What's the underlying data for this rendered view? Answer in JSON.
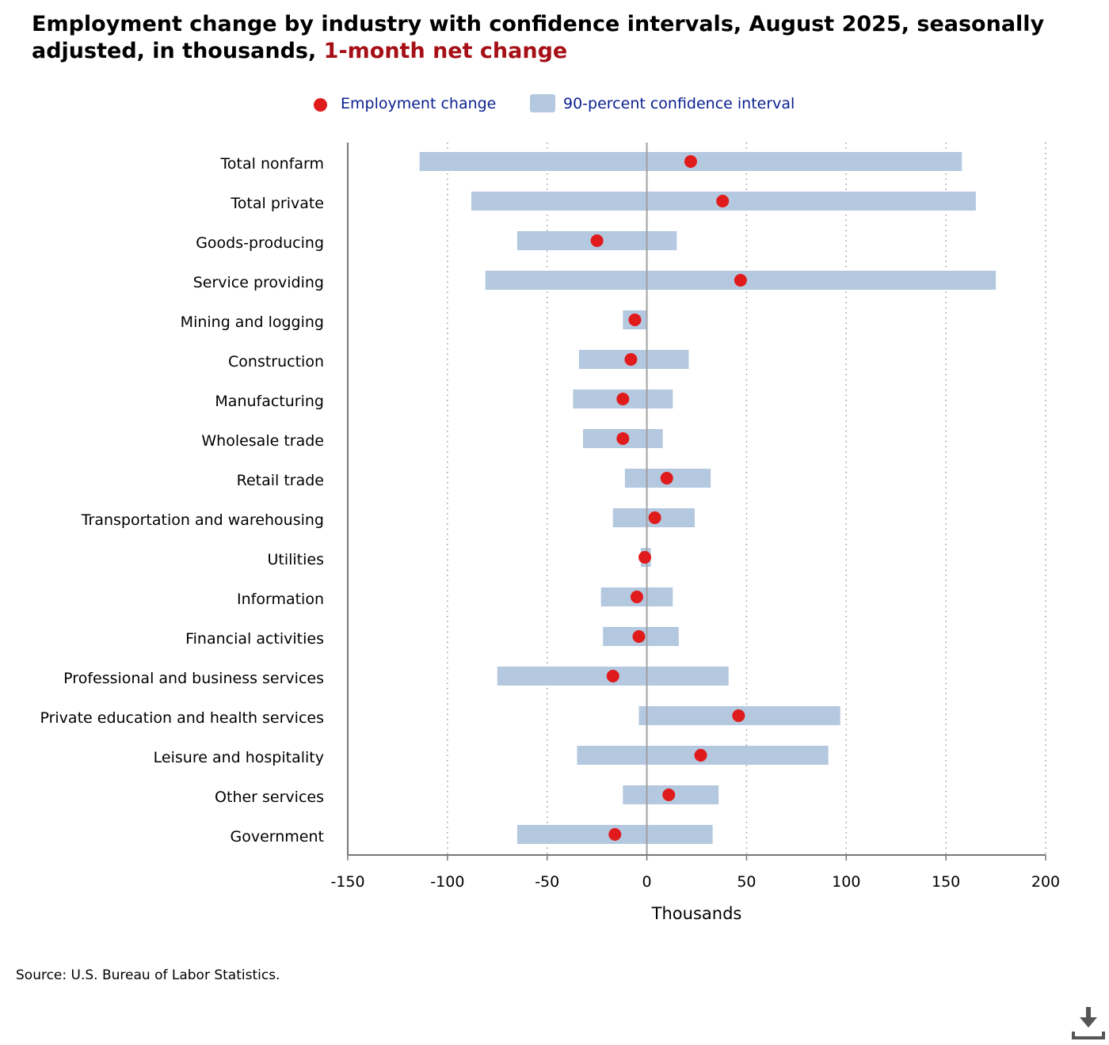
{
  "title": {
    "main": "Employment change by industry with confidence intervals, August 2025, seasonally adjusted, in thousands,",
    "highlight": "1-month net change"
  },
  "legend": {
    "point_label": "Employment change",
    "interval_label": "90-percent confidence interval"
  },
  "colors": {
    "point": "#e01b1b",
    "interval": "#b4c8e0",
    "highlight": "#a50f15",
    "legend_text": "#0a1f8f"
  },
  "source": "Source: U.S. Bureau of Labor Statistics.",
  "download_icon": "download-icon",
  "chart_data": {
    "type": "interval-dot",
    "orientation": "horizontal",
    "xlabel": "Thousands",
    "xlim": [
      -150,
      200
    ],
    "xticks": [
      -150,
      -100,
      -50,
      0,
      50,
      100,
      150,
      200
    ],
    "grid": "vertical dotted",
    "legend_position": "top-center",
    "categories": [
      "Total nonfarm",
      "Total private",
      "Goods-producing",
      "Service providing",
      "Mining and logging",
      "Construction",
      "Manufacturing",
      "Wholesale trade",
      "Retail trade",
      "Transportation and warehousing",
      "Utilities",
      "Information",
      "Financial activities",
      "Professional and business services",
      "Private education and health services",
      "Leisure and hospitality",
      "Other services",
      "Government"
    ],
    "series": [
      {
        "name": "Employment change",
        "values": [
          22,
          38,
          -25,
          47,
          -6,
          -8,
          -12,
          -12,
          10,
          4,
          -1,
          -5,
          -4,
          -17,
          46,
          27,
          11,
          -16
        ]
      },
      {
        "name": "90-percent confidence interval",
        "low": [
          -114,
          -88,
          -65,
          -81,
          -12,
          -34,
          -37,
          -32,
          -11,
          -17,
          -3,
          -23,
          -22,
          -75,
          -4,
          -35,
          -12,
          -65
        ],
        "high": [
          158,
          165,
          15,
          175,
          0,
          21,
          13,
          8,
          32,
          24,
          2,
          13,
          16,
          41,
          97,
          91,
          36,
          33
        ]
      }
    ]
  }
}
